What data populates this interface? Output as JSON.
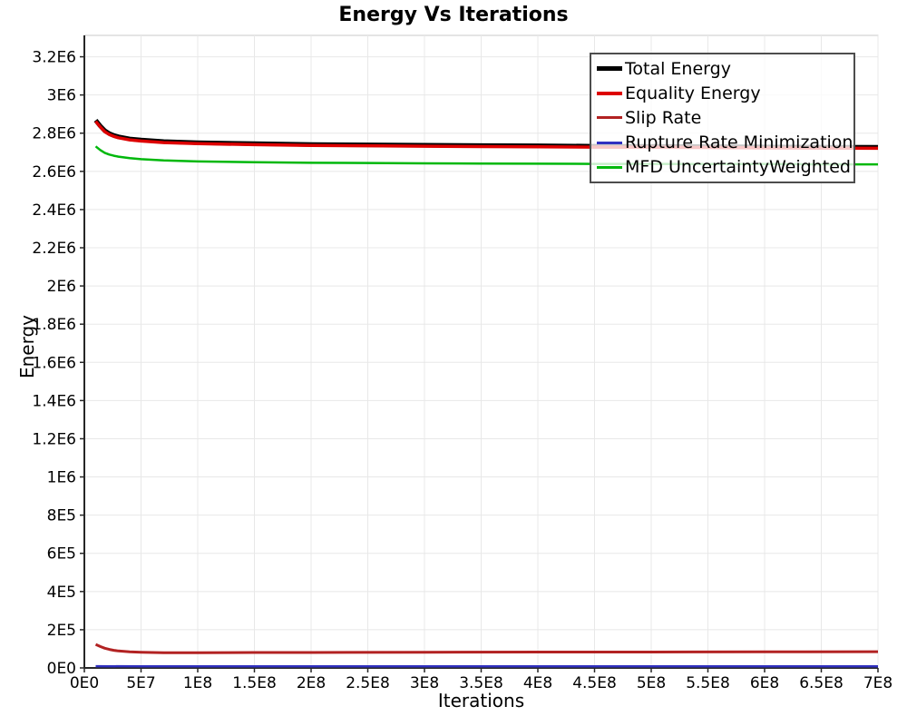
{
  "title": "Energy Vs Iterations",
  "chart_data": {
    "type": "line",
    "title": "Energy Vs Iterations",
    "xlabel": "Iterations",
    "ylabel": "Energy",
    "xlim": [
      0,
      700000000
    ],
    "ylim": [
      0,
      3312000
    ],
    "grid": true,
    "legend_position": "top-right",
    "x_ticks": [
      {
        "value": 0,
        "label": "0E0"
      },
      {
        "value": 50000000,
        "label": "5E7"
      },
      {
        "value": 100000000,
        "label": "1E8"
      },
      {
        "value": 150000000,
        "label": "1.5E8"
      },
      {
        "value": 200000000,
        "label": "2E8"
      },
      {
        "value": 250000000,
        "label": "2.5E8"
      },
      {
        "value": 300000000,
        "label": "3E8"
      },
      {
        "value": 350000000,
        "label": "3.5E8"
      },
      {
        "value": 400000000,
        "label": "4E8"
      },
      {
        "value": 450000000,
        "label": "4.5E8"
      },
      {
        "value": 500000000,
        "label": "5E8"
      },
      {
        "value": 550000000,
        "label": "5.5E8"
      },
      {
        "value": 600000000,
        "label": "6E8"
      },
      {
        "value": 650000000,
        "label": "6.5E8"
      },
      {
        "value": 700000000,
        "label": "7E8"
      }
    ],
    "y_ticks": [
      {
        "value": 0,
        "label": "0E0"
      },
      {
        "value": 200000,
        "label": "2E5"
      },
      {
        "value": 400000,
        "label": "4E5"
      },
      {
        "value": 600000,
        "label": "6E5"
      },
      {
        "value": 800000,
        "label": "8E5"
      },
      {
        "value": 1000000,
        "label": "1E6"
      },
      {
        "value": 1200000,
        "label": "1.2E6"
      },
      {
        "value": 1400000,
        "label": "1.4E6"
      },
      {
        "value": 1600000,
        "label": "1.6E6"
      },
      {
        "value": 1800000,
        "label": "1.8E6"
      },
      {
        "value": 2000000,
        "label": "2E6"
      },
      {
        "value": 2200000,
        "label": "2.2E6"
      },
      {
        "value": 2400000,
        "label": "2.4E6"
      },
      {
        "value": 2600000,
        "label": "2.6E6"
      },
      {
        "value": 2800000,
        "label": "2.8E6"
      },
      {
        "value": 3000000,
        "label": "3E6"
      },
      {
        "value": 3200000,
        "label": "3.2E6"
      }
    ],
    "series": [
      {
        "name": "Total Energy",
        "color": "#000000",
        "line_width": 5,
        "points": [
          [
            10000000,
            2867000
          ],
          [
            14000000,
            2838000
          ],
          [
            18000000,
            2813000
          ],
          [
            22000000,
            2798000
          ],
          [
            26000000,
            2788000
          ],
          [
            30000000,
            2781000
          ],
          [
            40000000,
            2770000
          ],
          [
            50000000,
            2764000
          ],
          [
            70000000,
            2756000
          ],
          [
            100000000,
            2750000
          ],
          [
            150000000,
            2745000
          ],
          [
            200000000,
            2741000
          ],
          [
            250000000,
            2739000
          ],
          [
            300000000,
            2737000
          ],
          [
            350000000,
            2735000
          ],
          [
            400000000,
            2734000
          ],
          [
            450000000,
            2732000
          ],
          [
            500000000,
            2731000
          ],
          [
            550000000,
            2730000
          ],
          [
            600000000,
            2728000
          ],
          [
            650000000,
            2727000
          ],
          [
            700000000,
            2726000
          ]
        ]
      },
      {
        "name": "Equality Energy",
        "color": "#dd0000",
        "line_width": 3.5,
        "points": [
          [
            10000000,
            2862000
          ],
          [
            14000000,
            2833000
          ],
          [
            18000000,
            2808000
          ],
          [
            22000000,
            2793000
          ],
          [
            26000000,
            2783000
          ],
          [
            30000000,
            2776000
          ],
          [
            40000000,
            2765000
          ],
          [
            50000000,
            2759000
          ],
          [
            70000000,
            2751000
          ],
          [
            100000000,
            2745000
          ],
          [
            150000000,
            2740000
          ],
          [
            200000000,
            2736000
          ],
          [
            250000000,
            2734000
          ],
          [
            300000000,
            2732000
          ],
          [
            350000000,
            2730000
          ],
          [
            400000000,
            2729000
          ],
          [
            450000000,
            2727000
          ],
          [
            500000000,
            2726000
          ],
          [
            550000000,
            2725000
          ],
          [
            600000000,
            2723000
          ],
          [
            650000000,
            2722000
          ],
          [
            700000000,
            2721000
          ]
        ]
      },
      {
        "name": "Slip Rate",
        "color": "#b22222",
        "line_width": 3,
        "points": [
          [
            10000000,
            123000
          ],
          [
            14000000,
            112000
          ],
          [
            18000000,
            103000
          ],
          [
            22000000,
            97000
          ],
          [
            26000000,
            92000
          ],
          [
            30000000,
            89000
          ],
          [
            40000000,
            84000
          ],
          [
            50000000,
            82000
          ],
          [
            70000000,
            80000
          ],
          [
            100000000,
            80000
          ],
          [
            150000000,
            81000
          ],
          [
            200000000,
            81000
          ],
          [
            300000000,
            82000
          ],
          [
            400000000,
            83000
          ],
          [
            500000000,
            83000
          ],
          [
            600000000,
            84000
          ],
          [
            700000000,
            85000
          ]
        ]
      },
      {
        "name": "Rupture Rate Minimization",
        "color": "#3030c0",
        "line_width": 2.5,
        "points": [
          [
            10000000,
            9000
          ],
          [
            50000000,
            8000
          ],
          [
            100000000,
            8000
          ],
          [
            400000000,
            8000
          ],
          [
            700000000,
            8000
          ]
        ]
      },
      {
        "name": "MFD UncertaintyWeighted",
        "color": "#00b80c",
        "line_width": 2.5,
        "points": [
          [
            10000000,
            2731000
          ],
          [
            14000000,
            2712000
          ],
          [
            18000000,
            2697000
          ],
          [
            22000000,
            2688000
          ],
          [
            26000000,
            2682000
          ],
          [
            30000000,
            2677000
          ],
          [
            40000000,
            2669000
          ],
          [
            50000000,
            2664000
          ],
          [
            70000000,
            2657000
          ],
          [
            100000000,
            2652000
          ],
          [
            150000000,
            2648000
          ],
          [
            200000000,
            2645000
          ],
          [
            250000000,
            2644000
          ],
          [
            300000000,
            2642000
          ],
          [
            350000000,
            2641000
          ],
          [
            400000000,
            2640000
          ],
          [
            450000000,
            2639000
          ],
          [
            500000000,
            2639000
          ],
          [
            550000000,
            2638000
          ],
          [
            600000000,
            2638000
          ],
          [
            650000000,
            2637000
          ],
          [
            700000000,
            2637000
          ]
        ]
      }
    ]
  },
  "colors": {
    "grid": "#e8e8e8",
    "plot_border": "#c8c8c8",
    "axis": "#262626",
    "tick_label": "#000000",
    "legend_border": "#4d4d4d"
  }
}
